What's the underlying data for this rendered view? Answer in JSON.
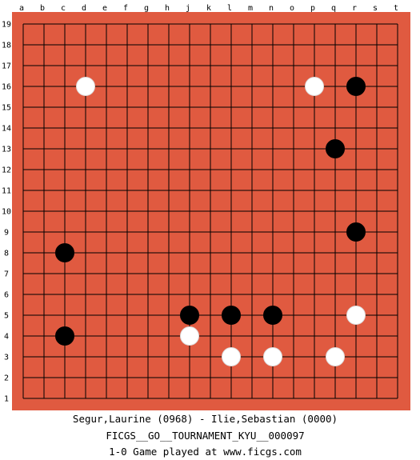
{
  "board": {
    "size": 19,
    "background_color": "#e05a40",
    "line_color": "#000000",
    "col_labels": [
      "a",
      "b",
      "c",
      "d",
      "e",
      "f",
      "g",
      "h",
      "j",
      "k",
      "l",
      "m",
      "n",
      "o",
      "p",
      "q",
      "r",
      "s",
      "t"
    ],
    "row_labels": [
      "19",
      "18",
      "17",
      "16",
      "15",
      "14",
      "13",
      "12",
      "11",
      "10",
      "9",
      "8",
      "7",
      "6",
      "5",
      "4",
      "3",
      "2",
      "1"
    ],
    "stones": [
      {
        "color": "white",
        "point": "d16"
      },
      {
        "color": "white",
        "point": "p16"
      },
      {
        "color": "black",
        "point": "r16"
      },
      {
        "color": "black",
        "point": "q13"
      },
      {
        "color": "black",
        "point": "r9"
      },
      {
        "color": "black",
        "point": "c8"
      },
      {
        "color": "black",
        "point": "j5"
      },
      {
        "color": "black",
        "point": "l5"
      },
      {
        "color": "black",
        "point": "n5"
      },
      {
        "color": "white",
        "point": "r5"
      },
      {
        "color": "black",
        "point": "c4"
      },
      {
        "color": "white",
        "point": "j4"
      },
      {
        "color": "white",
        "point": "l3"
      },
      {
        "color": "white",
        "point": "n3"
      },
      {
        "color": "white",
        "point": "q3"
      }
    ]
  },
  "caption": {
    "players": "Segur,Laurine (0968) - Ilie,Sebastian (0000)",
    "event": "FICGS__GO__TOURNAMENT_KYU__000097",
    "result": "1-0   Game played at www.ficgs.com"
  }
}
